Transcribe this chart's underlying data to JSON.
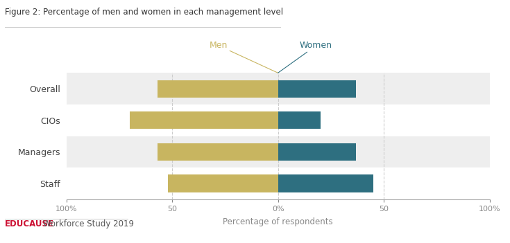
{
  "title": "Figure 2: Percentage of men and women in each management level",
  "categories": [
    "Overall",
    "CIOs",
    "Managers",
    "Staff"
  ],
  "men_values": [
    -57,
    -70,
    -57,
    -52
  ],
  "women_values": [
    37,
    20,
    37,
    45
  ],
  "men_color": "#c8b560",
  "women_color": "#2e6f80",
  "men_label": "Men",
  "women_label": "Women",
  "xlabel": "Percentage of respondents",
  "xlim": [
    -100,
    100
  ],
  "xticks": [
    -100,
    -50,
    0,
    50,
    100
  ],
  "xticklabels": [
    "100%",
    "50",
    "0%",
    "50",
    "100%"
  ],
  "footer_bold": "EDUCAUSE",
  "footer_regular": "Workforce Study 2019",
  "plot_bg": "#ffffff",
  "grid_color": "#cccccc",
  "row_alt_color": "#eeeeee",
  "row_white": "#ffffff",
  "title_color": "#333333",
  "label_color": "#444444",
  "tick_color": "#888888"
}
